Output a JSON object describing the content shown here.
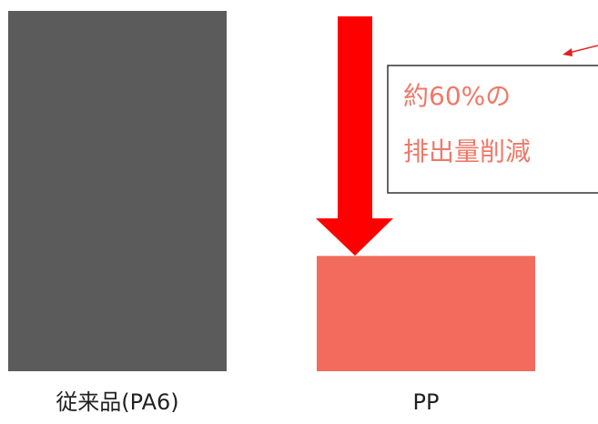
{
  "chart_data": {
    "type": "bar",
    "categories": [
      "従来品(PA6)",
      "PP"
    ],
    "values": [
      100,
      32
    ],
    "colors": [
      "#5b5b5b",
      "#f26b5c"
    ],
    "title": "",
    "xlabel": "",
    "ylabel": "",
    "ylim": [
      0,
      100
    ],
    "grid": false,
    "annotation": {
      "line1": "約60%の",
      "line2": "排出量削減",
      "text_color": "#f07868",
      "arrow_color": "#ff0000"
    }
  }
}
